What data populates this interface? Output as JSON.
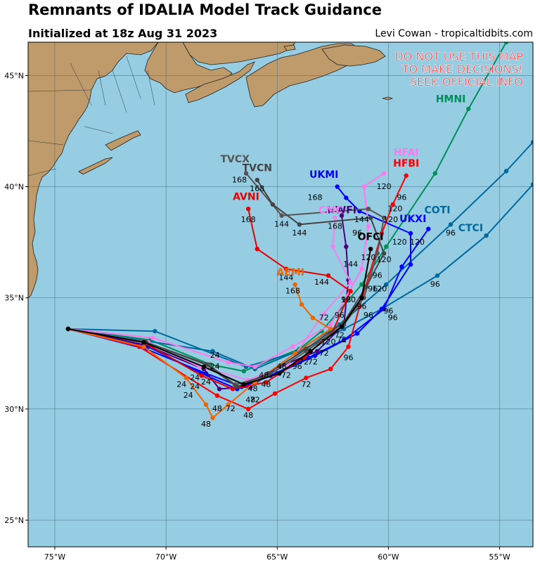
{
  "header": {
    "title": "Remnants of IDALIA Model Track Guidance",
    "initialized": "Initialized at 18z Aug 31 2023",
    "credit": "Levi Cowan - tropicaltidbits.com"
  },
  "warning": [
    "DO NOT USE THIS MAP",
    "TO MAKE DECISIONS!",
    "SEEK OFFICIAL INFO"
  ],
  "colors": {
    "ocean": "#96cde3",
    "land": "#bf9a6a",
    "warning": "#ff1a1a"
  },
  "map_data": {
    "lon_range": [
      -76.2,
      -53.5
    ],
    "lat_range": [
      23.8,
      46.5
    ],
    "lon_ticks": [
      {
        "v": -75,
        "label": "75°W"
      },
      {
        "v": -70,
        "label": "70°W"
      },
      {
        "v": -65,
        "label": "65°W"
      },
      {
        "v": -60,
        "label": "60°W"
      },
      {
        "v": -55,
        "label": "55°W"
      }
    ],
    "lat_ticks": [
      {
        "v": 25,
        "label": "25°N"
      },
      {
        "v": 30,
        "label": "30°N"
      },
      {
        "v": 35,
        "label": "35°N"
      },
      {
        "v": 40,
        "label": "40°N"
      },
      {
        "v": 45,
        "label": "45°N"
      }
    ],
    "tracks": [
      {
        "name": "HMNI",
        "color": "#008f5a",
        "points": [
          [
            -74.4,
            33.6
          ],
          [
            -70.7,
            33.1
          ],
          [
            -68.0,
            32.0
          ],
          [
            -66.5,
            31.7
          ],
          [
            -64.0,
            32.7
          ],
          [
            -63.0,
            33.5
          ],
          [
            -61.2,
            35.6
          ],
          [
            -60.1,
            37.3
          ],
          [
            -57.9,
            40.6
          ],
          [
            -56.4,
            43.5
          ],
          [
            -54.7,
            46.5
          ]
        ],
        "label": {
          "text": "HMNI",
          "lon": -57.2,
          "lat": 43.8
        },
        "hours": []
      },
      {
        "name": "CTCI",
        "color": "#006aa0",
        "points": [
          [
            -74.4,
            33.6
          ],
          [
            -70.5,
            33.5
          ],
          [
            -66.4,
            31.9
          ],
          [
            -64.0,
            32.6
          ],
          [
            -62.0,
            33.6
          ],
          [
            -60.3,
            34.5
          ],
          [
            -57.8,
            36.0
          ],
          [
            -55.6,
            37.8
          ],
          [
            -53.5,
            40.1
          ]
        ],
        "label": {
          "text": "CTCI",
          "lon": -56.3,
          "lat": 38.0
        },
        "hours": []
      },
      {
        "name": "COTI",
        "color": "#006aa0",
        "points": [
          [
            -74.4,
            33.6
          ],
          [
            -67.9,
            32.6
          ],
          [
            -66.0,
            31.8
          ],
          [
            -64.1,
            32.6
          ],
          [
            -62.2,
            33.8
          ],
          [
            -60.1,
            35.6
          ],
          [
            -57.2,
            38.3
          ],
          [
            -54.7,
            40.7
          ],
          [
            -53.5,
            42.0
          ]
        ],
        "label": {
          "text": "COTI",
          "lon": -57.8,
          "lat": 38.8
        },
        "hours": [
          {
            "t": "96",
            "lon": -57.2,
            "lat": 37.8
          },
          {
            "t": "96",
            "lon": -57.9,
            "lat": 35.5
          }
        ]
      },
      {
        "name": "UKXI",
        "color": "#0000ff",
        "points": [
          [
            -74.4,
            33.6
          ],
          [
            -70.8,
            32.8
          ],
          [
            -68.4,
            31.6
          ],
          [
            -66.8,
            30.9
          ],
          [
            -65.3,
            31.5
          ],
          [
            -63.6,
            32.3
          ],
          [
            -62.0,
            33.1
          ],
          [
            -60.2,
            34.5
          ],
          [
            -59.4,
            36.4
          ],
          [
            -58.2,
            38.1
          ]
        ],
        "label": {
          "text": "UKXI",
          "lon": -58.9,
          "lat": 38.4
        },
        "hours": [
          {
            "t": "120",
            "lon": -58.7,
            "lat": 37.4
          },
          {
            "t": "96",
            "lon": -59.8,
            "lat": 34.0
          }
        ]
      },
      {
        "name": "UKMI",
        "color": "#0000ff",
        "points": [
          [
            -74.4,
            33.6
          ],
          [
            -70.9,
            32.7
          ],
          [
            -68.2,
            31.6
          ],
          [
            -66.6,
            31.0
          ],
          [
            -65.0,
            31.6
          ],
          [
            -63.3,
            32.4
          ],
          [
            -61.4,
            33.4
          ],
          [
            -60.3,
            34.5
          ],
          [
            -59.0,
            36.5
          ],
          [
            -59.0,
            37.9
          ],
          [
            -61.3,
            38.9
          ],
          [
            -61.9,
            39.5
          ],
          [
            -62.3,
            40.0
          ]
        ],
        "label": {
          "text": "UKMI",
          "lon": -62.9,
          "lat": 40.4
        },
        "hours": [
          {
            "t": "168",
            "lon": -63.3,
            "lat": 39.4
          },
          {
            "t": "120",
            "lon": -59.5,
            "lat": 37.4
          }
        ]
      },
      {
        "name": "HWFI",
        "color": "#4b0082",
        "points": [
          [
            -74.4,
            33.6
          ],
          [
            -71.0,
            32.9
          ],
          [
            -68.3,
            31.8
          ],
          [
            -67.6,
            30.9
          ],
          [
            -66.2,
            31.0
          ],
          [
            -64.9,
            31.9
          ],
          [
            -63.2,
            32.6
          ],
          [
            -62.0,
            33.8
          ],
          [
            -61.8,
            35.8
          ],
          [
            -61.9,
            37.3
          ],
          [
            -62.1,
            38.7
          ]
        ],
        "label": {
          "text": "HWFI",
          "lon": -62.1,
          "lat": 38.8
        },
        "hours": [
          {
            "t": "144",
            "lon": -61.7,
            "lat": 36.4
          },
          {
            "t": "96",
            "lon": -62.2,
            "lat": 34.1
          }
        ]
      },
      {
        "name": "CMC",
        "color": "#ee82ee",
        "points": [
          [
            -74.4,
            33.6
          ],
          [
            -70.8,
            33.0
          ],
          [
            -68.5,
            31.9
          ],
          [
            -66.3,
            31.3
          ],
          [
            -64.5,
            32.0
          ],
          [
            -62.9,
            34.3
          ],
          [
            -61.7,
            35.7
          ],
          [
            -62.5,
            37.3
          ],
          [
            -62.4,
            38.6
          ]
        ],
        "label": {
          "text": "CMC",
          "lon": -62.6,
          "lat": 38.8
        },
        "hours": []
      },
      {
        "name": "HFAI",
        "color": "#ff77ee",
        "points": [
          [
            -74.4,
            33.6
          ],
          [
            -70.6,
            33.2
          ],
          [
            -67.2,
            32.1
          ],
          [
            -66.0,
            31.9
          ],
          [
            -64.3,
            32.8
          ],
          [
            -62.6,
            33.8
          ],
          [
            -61.2,
            36.3
          ],
          [
            -60.9,
            38.2
          ],
          [
            -61.1,
            40.0
          ],
          [
            -60.2,
            40.6
          ]
        ],
        "label": {
          "text": "HFAI",
          "lon": -59.2,
          "lat": 41.4
        },
        "hours": [
          {
            "t": "120",
            "lon": -60.2,
            "lat": 39.9
          }
        ]
      },
      {
        "name": "HFBI",
        "color": "#ff0000",
        "points": [
          [
            -74.4,
            33.6
          ],
          [
            -71.2,
            32.8
          ],
          [
            -67.7,
            30.6
          ],
          [
            -66.3,
            30.0
          ],
          [
            -65.1,
            30.7
          ],
          [
            -63.7,
            31.4
          ],
          [
            -62.6,
            31.8
          ],
          [
            -61.8,
            32.8
          ],
          [
            -61.3,
            34.6
          ],
          [
            -60.3,
            37.9
          ],
          [
            -59.8,
            39.2
          ],
          [
            -59.2,
            40.5
          ]
        ],
        "label": {
          "text": "HFBI",
          "lon": -59.2,
          "lat": 40.9
        },
        "hours": [
          {
            "t": "96",
            "lon": -61.8,
            "lat": 32.2
          },
          {
            "t": "72",
            "lon": -63.7,
            "lat": 31.0
          }
        ]
      },
      {
        "name": "AVNI",
        "color": "#e60000",
        "points": [
          [
            -74.4,
            33.6
          ],
          [
            -71.0,
            33.0
          ],
          [
            -68.4,
            31.5
          ],
          [
            -67.0,
            30.9
          ],
          [
            -65.5,
            31.2
          ],
          [
            -63.8,
            32.3
          ],
          [
            -62.5,
            33.5
          ],
          [
            -61.7,
            35.3
          ],
          [
            -62.7,
            36.0
          ],
          [
            -64.6,
            36.3
          ],
          [
            -65.9,
            37.2
          ],
          [
            -66.3,
            39.0
          ]
        ],
        "label": {
          "text": "AVNI",
          "lon": -66.4,
          "lat": 39.4
        },
        "hours": [
          {
            "t": "168",
            "lon": -66.3,
            "lat": 38.4
          },
          {
            "t": "144",
            "lon": -64.6,
            "lat": 35.8
          }
        ]
      },
      {
        "name": "AEMI",
        "color": "#ee6600",
        "points": [
          [
            -74.4,
            33.6
          ],
          [
            -71.0,
            32.8
          ],
          [
            -69.1,
            31.4
          ],
          [
            -68.2,
            30.2
          ],
          [
            -67.9,
            29.6
          ],
          [
            -67.2,
            30.2
          ],
          [
            -66.0,
            31.2
          ],
          [
            -64.2,
            32.5
          ],
          [
            -62.6,
            33.6
          ],
          [
            -63.4,
            34.1
          ],
          [
            -63.9,
            34.7
          ],
          [
            -64.2,
            35.6
          ]
        ],
        "label": {
          "text": "AEMI",
          "lon": -64.4,
          "lat": 36.0
        },
        "hours": [
          {
            "t": "168",
            "lon": -64.3,
            "lat": 35.2
          },
          {
            "t": "48",
            "lon": -68.2,
            "lat": 29.2
          },
          {
            "t": "24",
            "lon": -69.3,
            "lat": 31.0
          }
        ]
      },
      {
        "name": "TVCX",
        "color": "#555555",
        "points": [
          [
            -74.4,
            33.6
          ],
          [
            -70.9,
            33.0
          ],
          [
            -68.1,
            32.0
          ],
          [
            -66.9,
            31.1
          ],
          [
            -65.4,
            31.5
          ],
          [
            -63.7,
            32.6
          ],
          [
            -62.0,
            33.8
          ],
          [
            -61.1,
            35.0
          ],
          [
            -60.5,
            37.0
          ],
          [
            -60.2,
            38.6
          ],
          [
            -60.9,
            39.0
          ],
          [
            -64.8,
            38.7
          ],
          [
            -66.4,
            40.6
          ]
        ],
        "label": {
          "text": "TVCX",
          "lon": -66.9,
          "lat": 41.1
        },
        "hours": [
          {
            "t": "168",
            "lon": -66.7,
            "lat": 40.2
          },
          {
            "t": "144",
            "lon": -64.8,
            "lat": 38.2
          }
        ]
      },
      {
        "name": "TVCN",
        "color": "#444444",
        "points": [
          [
            -74.4,
            33.6
          ],
          [
            -70.9,
            33.0
          ],
          [
            -68.2,
            32.0
          ],
          [
            -66.8,
            31.0
          ],
          [
            -65.4,
            31.6
          ],
          [
            -63.7,
            32.7
          ],
          [
            -62.0,
            33.9
          ],
          [
            -61.0,
            35.5
          ],
          [
            -60.2,
            37.0
          ],
          [
            -60.8,
            38.6
          ],
          [
            -64.0,
            38.3
          ],
          [
            -65.2,
            39.2
          ],
          [
            -65.9,
            40.3
          ]
        ],
        "label": {
          "text": "TVCN",
          "lon": -65.9,
          "lat": 40.7
        },
        "hours": [
          {
            "t": "168",
            "lon": -65.9,
            "lat": 39.8
          },
          {
            "t": "144",
            "lon": -64.0,
            "lat": 37.8
          }
        ]
      },
      {
        "name": "OFCI",
        "color": "#000000",
        "points": [
          [
            -74.4,
            33.6
          ],
          [
            -71.0,
            33.0
          ],
          [
            -68.3,
            31.9
          ],
          [
            -66.5,
            31.1
          ],
          [
            -64.9,
            31.6
          ],
          [
            -63.5,
            32.6
          ],
          [
            -62.1,
            33.7
          ],
          [
            -61.2,
            35.0
          ],
          [
            -60.8,
            37.2
          ]
        ],
        "label": {
          "text": "OFCI",
          "lon": -60.8,
          "lat": 37.6
        },
        "hours": [
          {
            "t": "120",
            "lon": -60.9,
            "lat": 36.7
          },
          {
            "t": "96",
            "lon": -61.2,
            "lat": 34.5
          },
          {
            "t": "72",
            "lon": -62.2,
            "lat": 33.2
          }
        ]
      }
    ],
    "extra_hours": [
      {
        "t": "24",
        "lon": -67.8,
        "lat": 32.3
      },
      {
        "t": "24",
        "lon": -67.8,
        "lat": 31.8
      },
      {
        "t": "24",
        "lon": -68.7,
        "lat": 31.3
      },
      {
        "t": "24",
        "lon": -68.2,
        "lat": 31.1
      },
      {
        "t": "24",
        "lon": -68.7,
        "lat": 30.9
      },
      {
        "t": "48",
        "lon": -67.7,
        "lat": 29.9
      },
      {
        "t": "48",
        "lon": -66.3,
        "lat": 29.6
      },
      {
        "t": "48",
        "lon": -66.2,
        "lat": 30.3
      },
      {
        "t": "48",
        "lon": -66.1,
        "lat": 30.8
      },
      {
        "t": "48",
        "lon": -65.5,
        "lat": 31.0
      },
      {
        "t": "48",
        "lon": -65.6,
        "lat": 31.4
      },
      {
        "t": "48",
        "lon": -64.8,
        "lat": 31.8
      },
      {
        "t": "72",
        "lon": -67.1,
        "lat": 29.9
      },
      {
        "t": "72",
        "lon": -66.0,
        "lat": 30.3
      },
      {
        "t": "72",
        "lon": -64.6,
        "lat": 31.4
      },
      {
        "t": "72",
        "lon": -63.8,
        "lat": 32.0
      },
      {
        "t": "72",
        "lon": -63.4,
        "lat": 32.0
      },
      {
        "t": "72",
        "lon": -62.9,
        "lat": 32.4
      },
      {
        "t": "72",
        "lon": -62.9,
        "lat": 34.0
      },
      {
        "t": "72",
        "lon": -62.1,
        "lat": 33.0
      },
      {
        "t": "96",
        "lon": -64.1,
        "lat": 31.8
      },
      {
        "t": "96",
        "lon": -60.0,
        "lat": 34.3
      },
      {
        "t": "96",
        "lon": -60.9,
        "lat": 34.1
      },
      {
        "t": "96",
        "lon": -61.9,
        "lat": 34.8
      },
      {
        "t": "96",
        "lon": -60.7,
        "lat": 35.3
      },
      {
        "t": "96",
        "lon": -60.5,
        "lat": 35.9
      },
      {
        "t": "96",
        "lon": -61.4,
        "lat": 37.8
      },
      {
        "t": "96",
        "lon": -59.4,
        "lat": 39.4
      },
      {
        "t": "120",
        "lon": -62.7,
        "lat": 32.9
      },
      {
        "t": "120",
        "lon": -61.8,
        "lat": 34.8
      },
      {
        "t": "120",
        "lon": -60.4,
        "lat": 35.3
      },
      {
        "t": "120",
        "lon": -60.2,
        "lat": 36.6
      },
      {
        "t": "120",
        "lon": -59.9,
        "lat": 38.4
      },
      {
        "t": "120",
        "lon": -59.7,
        "lat": 38.9
      },
      {
        "t": "144",
        "lon": -61.2,
        "lat": 38.4
      },
      {
        "t": "144",
        "lon": -63.0,
        "lat": 35.6
      },
      {
        "t": "168",
        "lon": -62.4,
        "lat": 38.1
      },
      {
        "t": "24",
        "lon": -69.0,
        "lat": 30.5
      }
    ]
  }
}
